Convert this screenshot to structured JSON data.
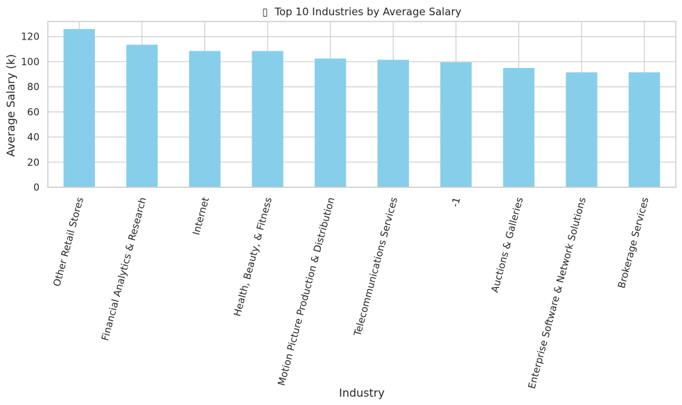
{
  "chart_data": {
    "type": "bar",
    "title_icon": "missing-glyph-box",
    "title_glyph": "▯",
    "title": "Top 10 Industries by Average Salary",
    "xlabel": "Industry",
    "ylabel": "Average Salary (k)",
    "categories": [
      "Other Retail Stores",
      "Financial Analytics & Research",
      "Internet",
      "Health, Beauty, & Fitness",
      "Motion Picture Production & Distribution",
      "Telecommunications Services",
      "-1",
      "Auctions & Galleries",
      "Enterprise Software & Network Solutions",
      "Brokerage Services"
    ],
    "values": [
      126,
      113.5,
      108.5,
      108.5,
      102.5,
      101.5,
      99.5,
      95,
      91.5,
      91.5
    ],
    "ylim": [
      0,
      132
    ],
    "yticks": [
      0,
      20,
      40,
      60,
      80,
      100,
      120
    ],
    "grid": true,
    "bar_color": "#87ceeb",
    "grid_color": "#cccccc",
    "axes_color": "#cccccc"
  }
}
